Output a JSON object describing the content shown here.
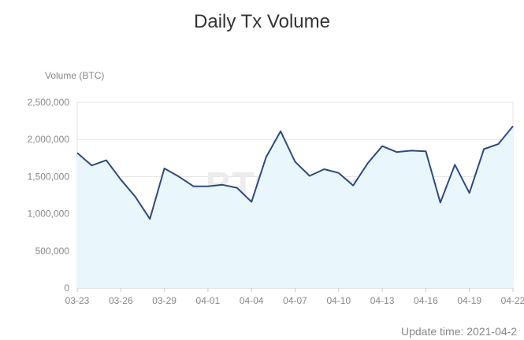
{
  "chart_data": {
    "type": "area",
    "title": "Daily Tx Volume",
    "ylabel": "Volume (BTC)",
    "xlabel": "",
    "ylim": [
      0,
      2500000
    ],
    "y_ticks": [
      "0",
      "500,000",
      "1,000,000",
      "1,500,000",
      "2,000,000",
      "2,500,000"
    ],
    "x_tick_labels": [
      "03-23",
      "03-26",
      "03-29",
      "04-01",
      "04-04",
      "04-07",
      "04-10",
      "04-13",
      "04-16",
      "04-19",
      "04-22"
    ],
    "x": [
      "03-23",
      "03-24",
      "03-25",
      "03-26",
      "03-27",
      "03-28",
      "03-29",
      "03-30",
      "03-31",
      "04-01",
      "04-02",
      "04-03",
      "04-04",
      "04-05",
      "04-06",
      "04-07",
      "04-08",
      "04-09",
      "04-10",
      "04-11",
      "04-12",
      "04-13",
      "04-14",
      "04-15",
      "04-16",
      "04-17",
      "04-18",
      "04-19",
      "04-20",
      "04-21",
      "04-22"
    ],
    "series": [
      {
        "values": [
          1820000,
          1650000,
          1720000,
          1460000,
          1230000,
          930000,
          1610000,
          1500000,
          1370000,
          1370000,
          1390000,
          1350000,
          1160000,
          1760000,
          2110000,
          1700000,
          1510000,
          1600000,
          1550000,
          1380000,
          1680000,
          1910000,
          1830000,
          1850000,
          1840000,
          1150000,
          1660000,
          1280000,
          1870000,
          1940000,
          2180000
        ]
      }
    ],
    "grid": true,
    "colors": {
      "line": "#2f4a7c",
      "fill": "#e9f6fb",
      "grid": "#e3e3e3",
      "axis": "#cccccc"
    }
  },
  "watermark": "BTC.com",
  "footer": {
    "update_time": "Update time: 2021-04-2"
  }
}
